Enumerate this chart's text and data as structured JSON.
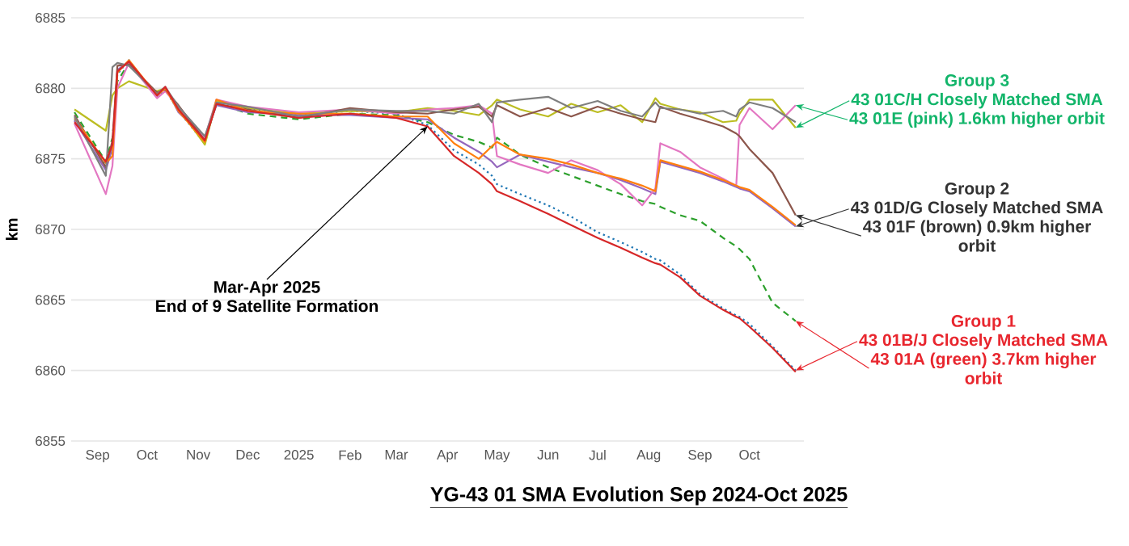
{
  "chart_data": {
    "type": "line",
    "title": "YG-43 01 SMA Evolution Sep 2024-Oct 2025",
    "ylabel": "km",
    "x": [
      "2024-08-18",
      "2024-09-06",
      "2024-09-10",
      "2024-09-13",
      "2024-09-20",
      "2024-10-07",
      "2024-10-12",
      "2024-10-20",
      "2024-11-05",
      "2024-11-12",
      "2024-12-01",
      "2025-01-01",
      "2025-02-01",
      "2025-03-01",
      "2025-03-20",
      "2025-04-05",
      "2025-04-20",
      "2025-04-28",
      "2025-05-01",
      "2025-05-15",
      "2025-06-01",
      "2025-06-15",
      "2025-07-01",
      "2025-07-15",
      "2025-07-28",
      "2025-08-05",
      "2025-08-08",
      "2025-08-20",
      "2025-09-01",
      "2025-09-15",
      "2025-09-23",
      "2025-09-25",
      "2025-10-01",
      "2025-10-15",
      "2025-10-29"
    ],
    "series": [
      {
        "color": "#2ca02c",
        "line_style": "dashed",
        "values": [
          6878.3,
          6874.8,
          6876.5,
          6880.5,
          6881.8,
          6879.6,
          6880,
          6878.6,
          6876.4,
          6879,
          6878.2,
          6877.8,
          6878.2,
          6878.1,
          6877.6,
          6876.7,
          6876.2,
          6875.8,
          6876.5,
          6875.3,
          6874.4,
          6873.8,
          6873.1,
          6872.5,
          6872.0,
          6871.8,
          6871.6,
          6871.0,
          6870.6,
          6869.4,
          6868.8,
          6868.6,
          6867.9,
          6864.8,
          6863.5
        ]
      },
      {
        "color": "#1f77b4",
        "line_style": "dotted",
        "values": [
          6877.8,
          6874.6,
          6875.5,
          6881,
          6882,
          6879.4,
          6879.9,
          6878.4,
          6876.1,
          6879.1,
          6878.6,
          6878.1,
          6878.4,
          6878.2,
          6877.4,
          6875.6,
          6874.6,
          6873.8,
          6873.2,
          6872.5,
          6871.7,
          6870.9,
          6869.8,
          6869.1,
          6868.4,
          6867.9,
          6867.8,
          6866.8,
          6865.4,
          6864.4,
          6863.9,
          6863.8,
          6863.3,
          6861.7,
          6860
        ]
      },
      {
        "color": "#bcbd22",
        "values": [
          6878.5,
          6877,
          6879.5,
          6880,
          6880.5,
          6879.8,
          6880,
          6878.6,
          6876,
          6879.1,
          6878.6,
          6878.2,
          6878.4,
          6878.3,
          6878.6,
          6878.4,
          6878.1,
          6878.8,
          6879.2,
          6878.5,
          6878.0,
          6878.9,
          6878.3,
          6878.8,
          6877.6,
          6879.3,
          6878.9,
          6878.5,
          6878.3,
          6877.6,
          6877.7,
          6878.2,
          6879.2,
          6879.2,
          6877.2
        ]
      },
      {
        "color": "#9467bd",
        "values": [
          6877.7,
          6874.2,
          6875.8,
          6881.3,
          6881.9,
          6879.4,
          6880.1,
          6878.3,
          6876.5,
          6878.8,
          6878.3,
          6878.1,
          6878.1,
          6877.9,
          6877.8,
          6876.5,
          6875.5,
          6874.8,
          6874.4,
          6875.3,
          6874.8,
          6874.4,
          6874.0,
          6873.5,
          6872.9,
          6872.5,
          6874.8,
          6874.4,
          6874.0,
          6873.4,
          6873.0,
          6872.9,
          6872.7,
          6871.5,
          6870.2
        ]
      },
      {
        "color": "#e377c2",
        "values": [
          6877.5,
          6872.5,
          6874.5,
          6880,
          6881.8,
          6879.3,
          6879.8,
          6878.7,
          6876.5,
          6879.2,
          6878.7,
          6878.3,
          6878.5,
          6878.2,
          6878.5,
          6878.6,
          6878.8,
          6878.2,
          6875.2,
          6874.6,
          6874.0,
          6874.9,
          6874.2,
          6873.2,
          6871.7,
          6872.9,
          6876.1,
          6875.5,
          6874.4,
          6873.6,
          6873.1,
          6877.4,
          6878.6,
          6877.1,
          6878.8
        ]
      },
      {
        "color": "#8c564b",
        "values": [
          6878.1,
          6874.4,
          6876.3,
          6881.6,
          6881.7,
          6879.7,
          6879.9,
          6878.8,
          6876.3,
          6878.9,
          6878.5,
          6877.9,
          6878.6,
          6878.3,
          6878.2,
          6878.5,
          6878.7,
          6878.0,
          6878.8,
          6878.0,
          6878.6,
          6878.0,
          6878.7,
          6878.2,
          6877.8,
          6877.6,
          6878.7,
          6878.2,
          6877.8,
          6877.3,
          6876.8,
          6876.6,
          6875.7,
          6874.0,
          6871.0
        ]
      },
      {
        "color": "#ff7f0e",
        "values": [
          6877.9,
          6874.7,
          6875.2,
          6881.1,
          6882,
          6879.5,
          6880,
          6878.4,
          6876.2,
          6879.2,
          6878.4,
          6878.2,
          6878.2,
          6878.0,
          6878.0,
          6876.1,
          6875.0,
          6875.9,
          6876.2,
          6875.3,
          6875.0,
          6874.6,
          6874.0,
          6873.6,
          6873.1,
          6872.7,
          6874.9,
          6874.5,
          6874.1,
          6873.5,
          6873.1,
          6873.0,
          6872.8,
          6871.6,
          6870.3
        ]
      },
      {
        "color": "#7f7f7f",
        "values": [
          6878.0,
          6873.8,
          6881.5,
          6881.8,
          6881.6,
          6879.6,
          6880.1,
          6878.7,
          6876.6,
          6879.0,
          6878.7,
          6878.0,
          6878.5,
          6878.4,
          6878.4,
          6878.2,
          6878.9,
          6877.6,
          6879.0,
          6879.2,
          6879.4,
          6878.6,
          6879.1,
          6878.4,
          6878.0,
          6879.0,
          6878.6,
          6878.5,
          6878.2,
          6878.4,
          6878.0,
          6878.5,
          6879.0,
          6878.6,
          6877.6
        ]
      },
      {
        "color": "#d62728",
        "values": [
          6877.6,
          6874.8,
          6876,
          6881.2,
          6881.9,
          6879.5,
          6880.1,
          6878.5,
          6876.3,
          6878.9,
          6878.4,
          6877.9,
          6878.2,
          6877.9,
          6877.3,
          6875.2,
          6874.0,
          6873.2,
          6872.7,
          6872.0,
          6871.1,
          6870.3,
          6869.4,
          6868.7,
          6868.0,
          6867.6,
          6867.5,
          6866.6,
          6865.3,
          6864.3,
          6863.8,
          6863.7,
          6863.1,
          6861.6,
          6859.9
        ]
      }
    ],
    "xlim": [
      "2024-08-16",
      "2025-11-03"
    ],
    "xticks": [
      {
        "value": "2024-09-01",
        "label": "Sep"
      },
      {
        "value": "2024-10-01",
        "label": "Oct"
      },
      {
        "value": "2024-11-01",
        "label": "Nov"
      },
      {
        "value": "2024-12-01",
        "label": "Dec"
      },
      {
        "value": "2025-01-01",
        "label": "2025"
      },
      {
        "value": "2025-02-01",
        "label": "Feb"
      },
      {
        "value": "2025-03-01",
        "label": "Mar"
      },
      {
        "value": "2025-04-01",
        "label": "Apr"
      },
      {
        "value": "2025-05-01",
        "label": "May"
      },
      {
        "value": "2025-06-01",
        "label": "Jun"
      },
      {
        "value": "2025-07-01",
        "label": "Jul"
      },
      {
        "value": "2025-08-01",
        "label": "Aug"
      },
      {
        "value": "2025-09-01",
        "label": "Sep"
      },
      {
        "value": "2025-10-01",
        "label": "Oct"
      }
    ],
    "ylim": [
      6855,
      6885
    ],
    "yticks": [
      6855,
      6860,
      6865,
      6870,
      6875,
      6880,
      6885
    ],
    "grid": "y",
    "annotations": [
      {
        "text": "Mar-Apr 2025",
        "x": "2025-03-20",
        "y": 6877.3
      },
      "End of 9 Satellite Formation",
      "Group 3",
      {
        "text": "43 01C/H Closely Matched SMA",
        "x": "2025-10-29",
        "y": 6877.2
      },
      {
        "text": "43 01E (pink) 1.6km higher orbit",
        "x": "2025-10-29",
        "y": 6878.8
      },
      "Group 2",
      {
        "text": "43 01D/G Closely Matched SMA",
        "x": "2025-10-29",
        "y": 6870.2
      },
      {
        "text": "43 01F (brown) 0.9km higher orbit",
        "x": "2025-10-29",
        "y": 6871.0
      },
      "Group 1",
      {
        "text": "43 01B/J Closely Matched SMA",
        "x": "2025-10-29",
        "y": 6860
      },
      {
        "text": "43 01A (green) 3.7km higher orbit",
        "x": "2025-10-29",
        "y": 6863.5
      }
    ]
  }
}
